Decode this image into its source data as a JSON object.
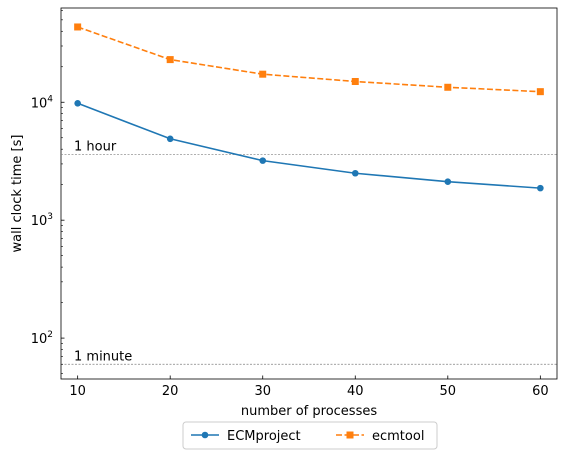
{
  "chart_data": {
    "type": "line",
    "title": "",
    "xlabel": "number of processes",
    "ylabel": "wall clock time [s]",
    "yscale": "log",
    "xlim": [
      8.2,
      61.8
    ],
    "ylim": [
      45,
      63000
    ],
    "x": [
      10,
      20,
      30,
      40,
      50,
      60
    ],
    "xticks": [
      10,
      20,
      30,
      40,
      50,
      60
    ],
    "yticks": [
      {
        "value": 100,
        "base": "10",
        "exp": "2"
      },
      {
        "value": 1000,
        "base": "10",
        "exp": "3"
      },
      {
        "value": 10000,
        "base": "10",
        "exp": "4"
      }
    ],
    "series": [
      {
        "name": "ECMproject",
        "color": "#1f77b4",
        "marker": "circle",
        "linestyle": "solid",
        "values": [
          9800,
          4900,
          3200,
          2500,
          2120,
          1870
        ]
      },
      {
        "name": "ecmtool",
        "color": "#ff7f0e",
        "marker": "square",
        "linestyle": "dashed",
        "values": [
          43500,
          23000,
          17300,
          15000,
          13400,
          12300
        ]
      }
    ],
    "reference_lines": [
      {
        "value": 3600,
        "label": "1 hour",
        "color": "#808080"
      },
      {
        "value": 60,
        "label": "1 minute",
        "color": "#808080"
      }
    ],
    "legend": {
      "placement": "bottom-center, outside",
      "columns": 2
    },
    "grid": false
  }
}
